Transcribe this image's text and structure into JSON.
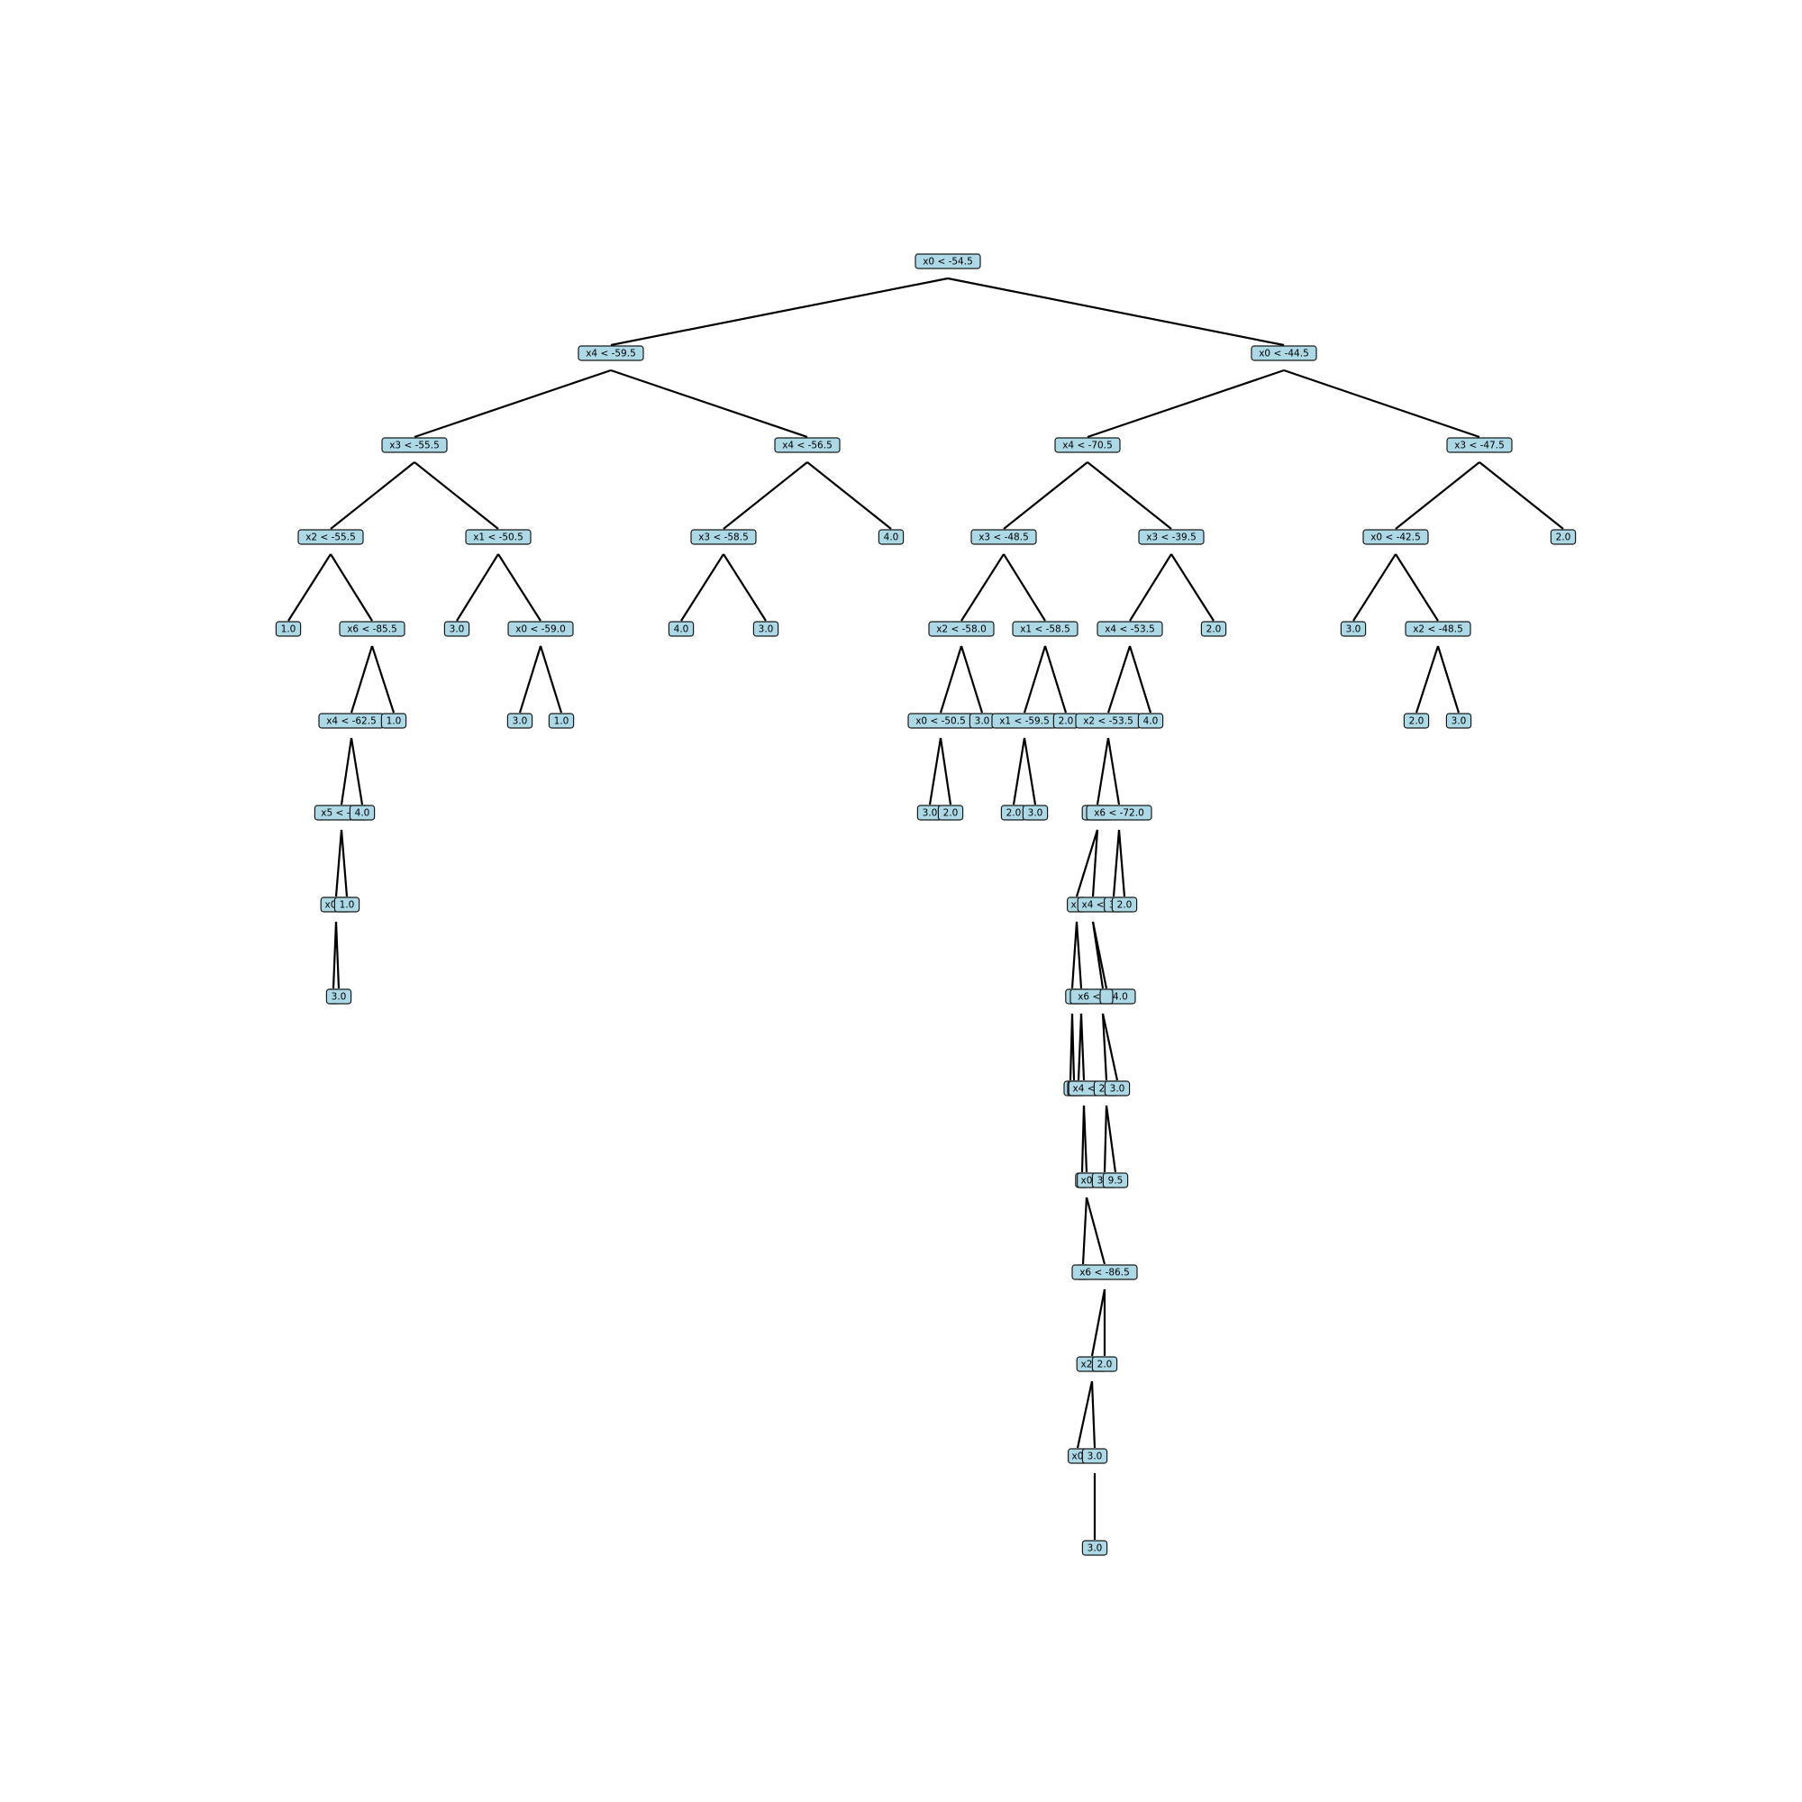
{
  "colors": {
    "node_fill": "#add8e6",
    "node_border": "#1a1a1a",
    "edge": "#000000",
    "background": "#ffffff"
  },
  "tree": {
    "nodes": [
      {
        "id": "n1",
        "label": "x0 < -54.5",
        "depth": 0
      },
      {
        "id": "n2",
        "label": "x4 < -59.5",
        "depth": 1,
        "parent": "n1"
      },
      {
        "id": "n3",
        "label": "x0 < -44.5",
        "depth": 1,
        "parent": "n1"
      },
      {
        "id": "n4",
        "label": "x3 < -55.5",
        "depth": 2,
        "parent": "n2"
      },
      {
        "id": "n5",
        "label": "x4 < -56.5",
        "depth": 2,
        "parent": "n2"
      },
      {
        "id": "n6",
        "label": "x4 < -70.5",
        "depth": 2,
        "parent": "n3"
      },
      {
        "id": "n7",
        "label": "x3 < -47.5",
        "depth": 2,
        "parent": "n3"
      },
      {
        "id": "n8",
        "label": "x2 < -55.5",
        "depth": 3,
        "parent": "n4"
      },
      {
        "id": "n9",
        "label": "x1 < -50.5",
        "depth": 3,
        "parent": "n4"
      },
      {
        "id": "n10",
        "label": "x3 < -58.5",
        "depth": 3,
        "parent": "n5"
      },
      {
        "id": "n11",
        "label": "4.0",
        "depth": 3,
        "parent": "n5"
      },
      {
        "id": "n12",
        "label": "x3 < -48.5",
        "depth": 3,
        "parent": "n6"
      },
      {
        "id": "n13",
        "label": "x3 < -39.5",
        "depth": 3,
        "parent": "n6"
      },
      {
        "id": "n14",
        "label": "x0 < -42.5",
        "depth": 3,
        "parent": "n7"
      },
      {
        "id": "n15",
        "label": "2.0",
        "depth": 3,
        "parent": "n7"
      },
      {
        "id": "n16",
        "label": "1.0",
        "depth": 4,
        "parent": "n8"
      },
      {
        "id": "n17",
        "label": "x6 < -85.5",
        "depth": 4,
        "parent": "n8"
      },
      {
        "id": "n18",
        "label": "3.0",
        "depth": 4,
        "parent": "n9"
      },
      {
        "id": "n19",
        "label": "x0 < -59.0",
        "depth": 4,
        "parent": "n9"
      },
      {
        "id": "n20",
        "label": "4.0",
        "depth": 4,
        "parent": "n10"
      },
      {
        "id": "n21",
        "label": "3.0",
        "depth": 4,
        "parent": "n10"
      },
      {
        "id": "n22",
        "label": "x2 < -58.0",
        "depth": 4,
        "parent": "n12"
      },
      {
        "id": "n23",
        "label": "x1 < -58.5",
        "depth": 4,
        "parent": "n12"
      },
      {
        "id": "n24",
        "label": "x4 < -53.5",
        "depth": 4,
        "parent": "n13"
      },
      {
        "id": "n25",
        "label": "2.0",
        "depth": 4,
        "parent": "n13"
      },
      {
        "id": "n26",
        "label": "3.0",
        "depth": 4,
        "parent": "n14"
      },
      {
        "id": "n27",
        "label": "x2 < -48.5",
        "depth": 4,
        "parent": "n14"
      },
      {
        "id": "n28",
        "label": "x4 < -62.5",
        "depth": 5,
        "parent": "n17"
      },
      {
        "id": "n29",
        "label": "1.0",
        "depth": 5,
        "parent": "n17"
      },
      {
        "id": "n30",
        "label": "3.0",
        "depth": 5,
        "parent": "n19"
      },
      {
        "id": "n31",
        "label": "1.0",
        "depth": 5,
        "parent": "n19"
      },
      {
        "id": "n32",
        "label": "x0 < -50.5",
        "depth": 5,
        "parent": "n22"
      },
      {
        "id": "n33",
        "label": "3.0",
        "depth": 5,
        "parent": "n22"
      },
      {
        "id": "n34",
        "label": "x1 < -59.5",
        "depth": 5,
        "parent": "n23"
      },
      {
        "id": "n35",
        "label": "2.0",
        "depth": 5,
        "parent": "n23"
      },
      {
        "id": "n36",
        "label": "x2 < -53.5",
        "depth": 5,
        "parent": "n24"
      },
      {
        "id": "n37",
        "label": "4.0",
        "depth": 5,
        "parent": "n24"
      },
      {
        "id": "n38",
        "label": "2.0",
        "depth": 5,
        "parent": "n27"
      },
      {
        "id": "n39",
        "label": "3.0",
        "depth": 5,
        "parent": "n27"
      },
      {
        "id": "n40",
        "label": "x5 < -85",
        "depth": 6,
        "parent": "n28"
      },
      {
        "id": "n41",
        "label": "4.0",
        "depth": 6,
        "parent": "n28"
      },
      {
        "id": "n42",
        "label": "3.0",
        "depth": 6,
        "parent": "n32"
      },
      {
        "id": "n43",
        "label": "2.0",
        "depth": 6,
        "parent": "n32"
      },
      {
        "id": "n44",
        "label": "2.0",
        "depth": 6,
        "parent": "n34"
      },
      {
        "id": "n45",
        "label": "3.0",
        "depth": 6,
        "parent": "n34"
      },
      {
        "id": "n46",
        "label": "x5 <",
        "depth": 6,
        "parent": "n36"
      },
      {
        "id": "n47",
        "label": "x6 < -72.0",
        "depth": 6,
        "parent": "n36"
      },
      {
        "id": "n48",
        "label": "x0 <",
        "depth": 7,
        "parent": "n40"
      },
      {
        "id": "n49",
        "label": "1.0",
        "depth": 7,
        "parent": "n40"
      },
      {
        "id": "n50",
        "label": "x1",
        "depth": 7,
        "parent": "n46"
      },
      {
        "id": "n51",
        "label": "x4 <",
        "depth": 7,
        "parent": "n46"
      },
      {
        "id": "n52",
        "label": "3.",
        "depth": 7,
        "parent": "n47"
      },
      {
        "id": "n53",
        "label": "2.0",
        "depth": 7,
        "parent": "n47"
      },
      {
        "id": "n54",
        "label": "(",
        "depth": 8,
        "parent": "n48"
      },
      {
        "id": "n55",
        "label": "3.0",
        "depth": 8,
        "parent": "n48"
      },
      {
        "id": "n56",
        "label": "x",
        "depth": 8,
        "parent": "n50"
      },
      {
        "id": "n57",
        "label": "x6",
        "depth": 8,
        "parent": "n50"
      },
      {
        "id": "n58",
        "label": "x6 < -74.0",
        "depth": 8,
        "parent": "n51"
      },
      {
        "id": "n59",
        "label": "",
        "depth": 8,
        "parent": "n51"
      },
      {
        "id": "n60",
        "label": "",
        "depth": 9,
        "parent": "n56"
      },
      {
        "id": "n61",
        "label": "",
        "depth": 9,
        "parent": "n56"
      },
      {
        "id": "n62",
        "label": "",
        "depth": 9,
        "parent": "n57"
      },
      {
        "id": "n63",
        "label": "x4 <",
        "depth": 9,
        "parent": "n57"
      },
      {
        "id": "n64",
        "label": "2.0",
        "depth": 9,
        "parent": "n58"
      },
      {
        "id": "n65",
        "label": "3.0",
        "depth": 9,
        "parent": "n58"
      },
      {
        "id": "n66",
        "label": "(",
        "depth": 10,
        "parent": "n63"
      },
      {
        "id": "n67",
        "label": "x0",
        "depth": 10,
        "parent": "n63"
      },
      {
        "id": "n68",
        "label": "3.0",
        "depth": 10,
        "parent": "n64"
      },
      {
        "id": "n69",
        "label": "9.5",
        "depth": 10,
        "parent": "n64"
      },
      {
        "id": "n70",
        "label": "x",
        "depth": 11,
        "parent": "n67"
      },
      {
        "id": "n71",
        "label": "x6 < -86.5",
        "depth": 11,
        "parent": "n67"
      },
      {
        "id": "n72",
        "label": "x2 <",
        "depth": 12,
        "parent": "n71"
      },
      {
        "id": "n73",
        "label": "2.0",
        "depth": 12,
        "parent": "n71"
      },
      {
        "id": "n74",
        "label": "x0",
        "depth": 13,
        "parent": "n72"
      },
      {
        "id": "n75",
        "label": "3.0",
        "depth": 13,
        "parent": "n72"
      },
      {
        "id": "n76",
        "label": "3.0",
        "depth": 14,
        "parent": "n75"
      }
    ]
  }
}
